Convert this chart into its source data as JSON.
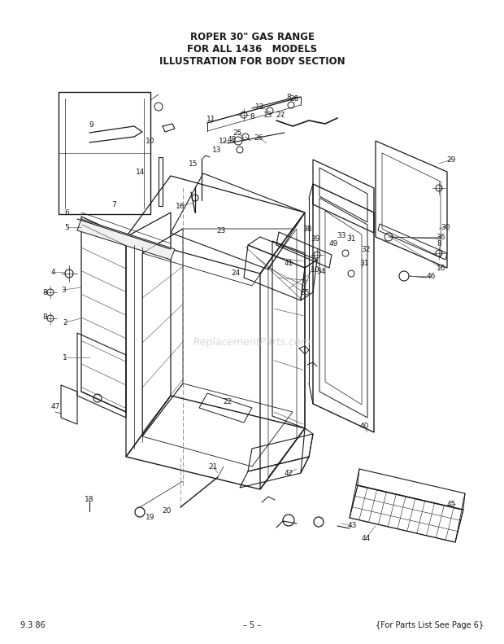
{
  "title_line1": "ROPER 30\" GAS RANGE",
  "title_line2": "FOR ALL 1436   MODELS",
  "title_line3": "ILLUSTRATION FOR BODY SECTION",
  "footer_left": "9.3 86",
  "footer_center": "– 5 –",
  "footer_right": "{For Parts List See Page 6}",
  "bg_color": "#ffffff",
  "lc": "#1a1a1a",
  "tc": "#1a1a1a",
  "watermark_color": "#c8c8c8",
  "watermark": "ReplacementParts.com"
}
